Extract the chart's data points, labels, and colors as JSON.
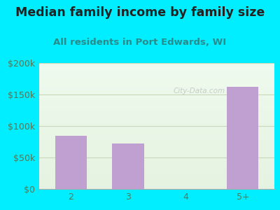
{
  "title": "Median family income by family size",
  "subtitle": "All residents in Port Edwards, WI",
  "categories": [
    "2",
    "3",
    "4",
    "5+"
  ],
  "values": [
    85000,
    72000,
    0,
    162000
  ],
  "bar_color": "#c0a0d0",
  "title_fontsize": 12.5,
  "subtitle_fontsize": 9.5,
  "subtitle_color": "#2a8a8a",
  "title_color": "#222222",
  "background_outer": "#00eeff",
  "ylim": [
    0,
    200000
  ],
  "yticks": [
    0,
    50000,
    100000,
    150000,
    200000
  ],
  "ytick_labels": [
    "$0",
    "$50k",
    "$100k",
    "$150k",
    "$200k"
  ],
  "grid_color": "#c8d8b8",
  "tick_color": "#557755",
  "watermark": "City-Data.com"
}
